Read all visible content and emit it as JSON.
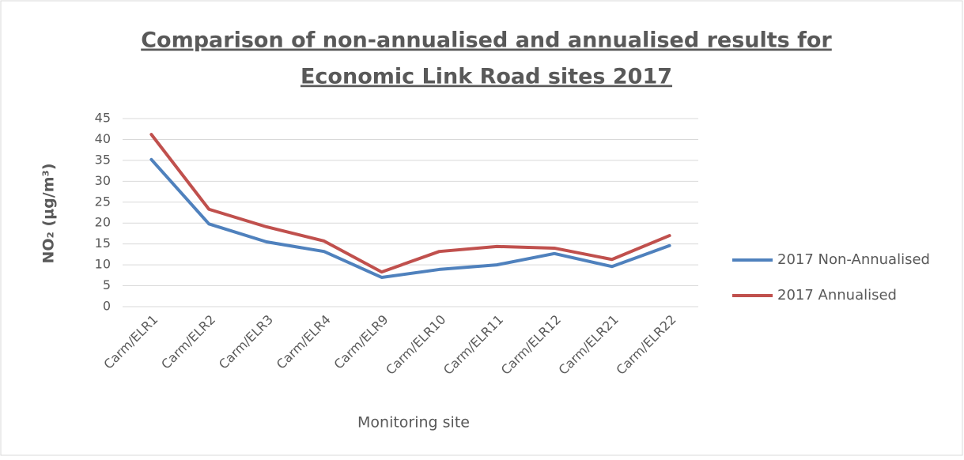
{
  "chart_data": {
    "type": "line",
    "title": [
      "Comparison of non-annualised and annualised results for",
      "Economic Link Road sites 2017"
    ],
    "x_label": "Monitoring site",
    "y_label": "NO₂ (µg/m³)",
    "categories": [
      "Carm/ELR1",
      "Carm/ELR2",
      "Carm/ELR3",
      "Carm/ELR4",
      "Carm/ELR9",
      "Carm/ELR10",
      "Carm/ELR11",
      "Carm/ELR12",
      "Carm/ELR21",
      "Carm/ELR22"
    ],
    "series": [
      {
        "name": "2017 Non-Annualised",
        "color": "#4f81bd",
        "values": [
          35.2,
          19.8,
          15.5,
          13.2,
          7.0,
          8.9,
          10.0,
          12.7,
          9.6,
          14.6
        ]
      },
      {
        "name": "2017 Annualised",
        "color": "#c0504d",
        "values": [
          41.2,
          23.3,
          19.1,
          15.7,
          8.3,
          13.2,
          14.4,
          14.0,
          11.3,
          17.0
        ]
      }
    ],
    "ylim": [
      0,
      45
    ],
    "yticks": [
      0,
      5,
      10,
      15,
      20,
      25,
      30,
      35,
      40,
      45
    ],
    "grid": true,
    "legend": "right"
  }
}
